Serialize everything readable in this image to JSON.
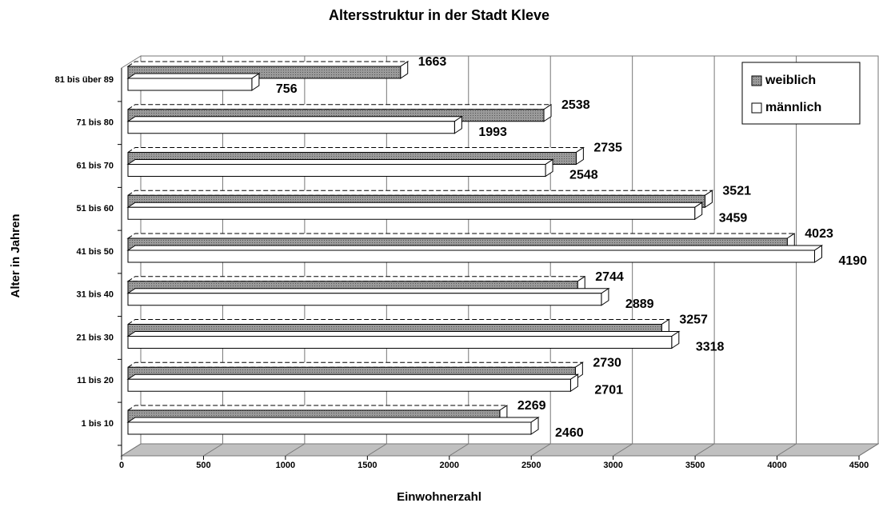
{
  "chart_data": {
    "type": "bar3d",
    "orientation": "horizontal",
    "title": "Altersstruktur in der Stadt Kleve",
    "x_label": "Einwohnerzahl",
    "y_label": "Alter in Jahren",
    "categories": [
      "1 bis 10",
      "11 bis 20",
      "21 bis 30",
      "31 bis 40",
      "41 bis 50",
      "51 bis 60",
      "61 bis 70",
      "71 bis 80",
      "81 bis über 89"
    ],
    "series": [
      {
        "name": "weiblich",
        "color": "#8c8c8c",
        "values": [
          2269,
          2730,
          3257,
          2744,
          4023,
          3521,
          2735,
          2538,
          1663
        ]
      },
      {
        "name": "männlich",
        "color": "#ffffff",
        "values": [
          2460,
          2701,
          3318,
          2889,
          4190,
          3459,
          2548,
          1993,
          756
        ]
      }
    ],
    "xlim": [
      0,
      4500
    ],
    "xticks": [
      0,
      500,
      1000,
      1500,
      2000,
      2500,
      3000,
      3500,
      4000,
      4500
    ],
    "grid": true,
    "legend": "upper right"
  }
}
